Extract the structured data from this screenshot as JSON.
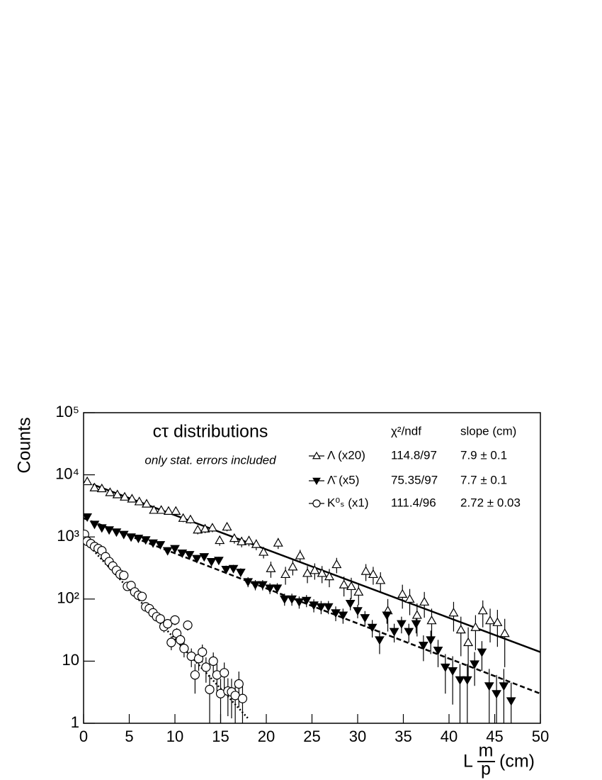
{
  "chart_data": {
    "type": "scatter",
    "title": "cτ  distributions",
    "subtitle": "only stat. errors included",
    "ylabel": "Counts",
    "xlabel": {
      "prefix": "L",
      "numerator": "m",
      "denominator": "p",
      "unit": "(cm)"
    },
    "log_y": true,
    "xlim": [
      0,
      50
    ],
    "ylim": [
      1,
      100000
    ],
    "xticks": [
      0,
      5,
      10,
      15,
      20,
      25,
      30,
      35,
      40,
      45,
      50
    ],
    "yticks": [
      1,
      10,
      {
        "value": 100,
        "label": "10²"
      },
      {
        "value": 1000,
        "label": "10³"
      },
      {
        "value": 10000,
        "label": "10⁴"
      },
      {
        "value": 100000,
        "label": "10⁵"
      }
    ],
    "legend_header": [
      "χ²/ndf",
      "slope (cm)"
    ],
    "series": [
      {
        "name": "Λ  (x20)",
        "chi2_ndf": "114.8/97",
        "slope": "7.9 ± 0.1",
        "marker": "triangle-up-open",
        "color": "#000000",
        "x": [
          0.4,
          1.2,
          2.0,
          2.9,
          3.7,
          4.5,
          5.3,
          6.1,
          6.9,
          7.7,
          8.5,
          9.3,
          10.1,
          10.9,
          11.7,
          12.5,
          13.3,
          14.1,
          14.9,
          15.7,
          16.5,
          17.3,
          18.1,
          18.9,
          19.7,
          20.5,
          21.3,
          22.1,
          22.9,
          23.7,
          24.5,
          25.3,
          26.1,
          26.9,
          27.7,
          28.5,
          29.3,
          30.1,
          30.9,
          31.7,
          32.5,
          33.3,
          34.9,
          35.7,
          36.5,
          37.3,
          38.1,
          40.5,
          41.3,
          42.1,
          42.9,
          43.7,
          44.5,
          45.3,
          46.1
        ],
        "values": [
          7800,
          6200,
          6000,
          5200,
          4800,
          4400,
          4100,
          3700,
          3400,
          2700,
          2700,
          2600,
          2600,
          2000,
          1900,
          1300,
          1350,
          1400,
          880,
          1450,
          950,
          840,
          870,
          760,
          570,
          310,
          800,
          250,
          330,
          500,
          260,
          290,
          260,
          230,
          360,
          170,
          160,
          130,
          280,
          250,
          200,
          65,
          120,
          100,
          55,
          90,
          45,
          60,
          32,
          20,
          35,
          65,
          45,
          42,
          28
        ],
        "errors": [
          700,
          600,
          600,
          500,
          500,
          450,
          420,
          400,
          380,
          320,
          320,
          320,
          320,
          270,
          260,
          200,
          200,
          210,
          160,
          220,
          170,
          160,
          160,
          150,
          120,
          90,
          160,
          80,
          90,
          120,
          80,
          85,
          80,
          75,
          100,
          60,
          60,
          50,
          85,
          80,
          70,
          35,
          50,
          45,
          30,
          40,
          25,
          30,
          20,
          15,
          20,
          30,
          25,
          25,
          20
        ]
      },
      {
        "name": "Λ̄  (x5)",
        "chi2_ndf": "75.35/97",
        "slope": "7.7 ± 0.1",
        "marker": "triangle-down-filled",
        "color": "#000000",
        "x": [
          0.4,
          1.2,
          2,
          2.8,
          3.6,
          4.4,
          5.2,
          6,
          6.8,
          7.6,
          8.4,
          9.2,
          10,
          10.8,
          11.6,
          12.4,
          13.2,
          14,
          14.8,
          15.6,
          16.4,
          17.2,
          18,
          18.8,
          19.6,
          20.4,
          21.2,
          22,
          22.8,
          23.6,
          24.4,
          25.2,
          26,
          26.8,
          27.6,
          28.4,
          29.2,
          30,
          30.8,
          31.6,
          32.4,
          33.2,
          34,
          34.8,
          35.6,
          36.4,
          37.2,
          38,
          38.8,
          39.6,
          40.4,
          41.2,
          42,
          42.8,
          43.6,
          44.4,
          45.2,
          46,
          46.8
        ],
        "values": [
          2100,
          1600,
          1400,
          1300,
          1200,
          1100,
          1000,
          950,
          900,
          800,
          750,
          600,
          650,
          550,
          520,
          450,
          480,
          400,
          420,
          300,
          310,
          270,
          190,
          170,
          170,
          150,
          150,
          100,
          100,
          90,
          95,
          80,
          75,
          75,
          60,
          55,
          85,
          65,
          50,
          35,
          22,
          55,
          30,
          40,
          30,
          40,
          18,
          22,
          15,
          8,
          7,
          5,
          5,
          9,
          14,
          4,
          3,
          4,
          2.3
        ],
        "errors": [
          200,
          170,
          150,
          140,
          130,
          120,
          110,
          105,
          100,
          90,
          85,
          75,
          80,
          70,
          68,
          60,
          62,
          55,
          58,
          45,
          46,
          42,
          35,
          32,
          32,
          30,
          30,
          22,
          22,
          20,
          21,
          19,
          18,
          18,
          16,
          15,
          19,
          16,
          14,
          11,
          9,
          15,
          10,
          12,
          10,
          12,
          8,
          9,
          7,
          5,
          5,
          4,
          4,
          5,
          7,
          3.5,
          3,
          3.5,
          2.2
        ]
      },
      {
        "name": "K⁰ₛ (x1)",
        "chi2_ndf": "111.4/96",
        "slope": "2.72 ± 0.03",
        "marker": "circle-open",
        "color": "#000000",
        "x": [
          0.1,
          0.4,
          0.8,
          1.2,
          1.6,
          2.0,
          2.4,
          2.8,
          3.2,
          3.6,
          4.0,
          4.4,
          4.8,
          5.2,
          5.6,
          6.0,
          6.4,
          6.8,
          7.2,
          7.6,
          8.0,
          8.4,
          8.8,
          9.2,
          9.6,
          10.0,
          10.2,
          10.6,
          11.0,
          11.4,
          11.8,
          12.2,
          12.6,
          13.0,
          13.4,
          13.8,
          14.2,
          14.6,
          15.0,
          15.4,
          15.8,
          16.2,
          16.6,
          17.0,
          17.4
        ],
        "values": [
          1100,
          850,
          780,
          700,
          650,
          600,
          480,
          400,
          340,
          290,
          250,
          240,
          160,
          165,
          130,
          115,
          110,
          75,
          70,
          60,
          52,
          48,
          36,
          40,
          20,
          46,
          28,
          22,
          16,
          38,
          12,
          6,
          11,
          14,
          8,
          3.5,
          10,
          6,
          3,
          6.5,
          3.3,
          3.2,
          2.8,
          4.3,
          2.5
        ],
        "errors": [
          60,
          45,
          40,
          38,
          35,
          33,
          30,
          27,
          25,
          23,
          21,
          20,
          16,
          16,
          14,
          13,
          13,
          10,
          10,
          9,
          8,
          8,
          7,
          7,
          5,
          8,
          6,
          5,
          4.5,
          7,
          4,
          3,
          4,
          4.5,
          3.5,
          2.5,
          3.8,
          3,
          2.2,
          3,
          2,
          2,
          2,
          2.5,
          1.8
        ]
      }
    ],
    "fits": [
      {
        "series": 0,
        "x": [
          1,
          50
        ],
        "values": [
          7000,
          14
        ],
        "dash": "none"
      },
      {
        "series": 1,
        "x": [
          0,
          50
        ],
        "values": [
          2000,
          3
        ],
        "dash": "7,4"
      },
      {
        "series": 2,
        "x": [
          0,
          18
        ],
        "values": [
          900,
          1.2
        ],
        "dash": "2,3"
      }
    ]
  }
}
